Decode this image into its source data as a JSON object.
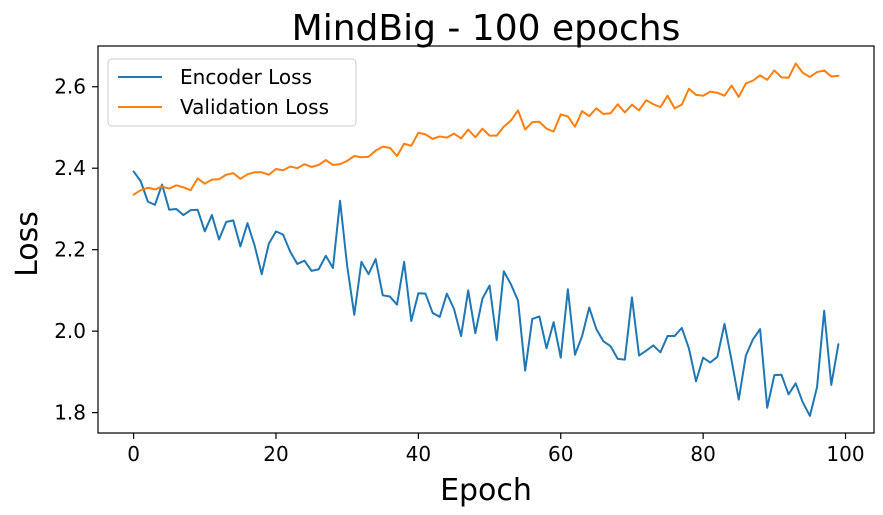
{
  "chart_data": {
    "type": "line",
    "title": "MindBig - 100 epochs",
    "xlabel": "Epoch",
    "ylabel": "Loss",
    "xlim": [
      -5,
      104
    ],
    "ylim": [
      1.75,
      2.7
    ],
    "xticks": [
      0,
      20,
      40,
      60,
      80,
      100
    ],
    "yticks": [
      1.8,
      2.0,
      2.2,
      2.4,
      2.6
    ],
    "ytick_labels": [
      "1.8",
      "2.0",
      "2.2",
      "2.4",
      "2.6"
    ],
    "grid": false,
    "legend": "upper-left",
    "series": [
      {
        "name": "Encoder Loss",
        "color": "#1f77b4",
        "x": [
          0,
          1,
          2,
          3,
          4,
          5,
          6,
          7,
          8,
          9,
          10,
          11,
          12,
          13,
          14,
          15,
          16,
          17,
          18,
          19,
          20,
          21,
          22,
          23,
          24,
          25,
          26,
          27,
          28,
          29,
          30,
          31,
          32,
          33,
          34,
          35,
          36,
          37,
          38,
          39,
          40,
          41,
          42,
          43,
          44,
          45,
          46,
          47,
          48,
          49,
          50,
          51,
          52,
          53,
          54,
          55,
          56,
          57,
          58,
          59,
          60,
          61,
          62,
          63,
          64,
          65,
          66,
          67,
          68,
          69,
          70,
          71,
          72,
          73,
          74,
          75,
          76,
          77,
          78,
          79,
          80,
          81,
          82,
          83,
          84,
          85,
          86,
          87,
          88,
          89,
          90,
          91,
          92,
          93,
          94,
          95,
          96,
          97,
          98,
          99
        ],
        "values": [
          2.392,
          2.368,
          2.318,
          2.31,
          2.36,
          2.298,
          2.3,
          2.285,
          2.297,
          2.298,
          2.245,
          2.285,
          2.225,
          2.268,
          2.272,
          2.208,
          2.265,
          2.21,
          2.14,
          2.215,
          2.245,
          2.237,
          2.195,
          2.165,
          2.173,
          2.148,
          2.152,
          2.185,
          2.155,
          2.32,
          2.16,
          2.04,
          2.17,
          2.14,
          2.177,
          2.088,
          2.085,
          2.065,
          2.17,
          2.025,
          2.093,
          2.092,
          2.045,
          2.035,
          2.092,
          2.055,
          1.988,
          2.1,
          1.995,
          2.08,
          2.112,
          1.978,
          2.147,
          2.115,
          2.075,
          1.903,
          2.03,
          2.036,
          1.958,
          2.022,
          1.935,
          2.103,
          1.942,
          1.988,
          2.058,
          2.005,
          1.975,
          1.963,
          1.932,
          1.93,
          2.083,
          1.94,
          1.952,
          1.965,
          1.948,
          1.988,
          1.988,
          2.008,
          1.958,
          1.877,
          1.935,
          1.923,
          1.937,
          2.018,
          1.928,
          1.832,
          1.94,
          1.98,
          2.005,
          1.812,
          1.892,
          1.893,
          1.845,
          1.872,
          1.825,
          1.792,
          1.863,
          2.05,
          1.868,
          1.968
        ]
      },
      {
        "name": "Validation Loss",
        "color": "#ff7f0e",
        "x": [
          0,
          1,
          2,
          3,
          4,
          5,
          6,
          7,
          8,
          9,
          10,
          11,
          12,
          13,
          14,
          15,
          16,
          17,
          18,
          19,
          20,
          21,
          22,
          23,
          24,
          25,
          26,
          27,
          28,
          29,
          30,
          31,
          32,
          33,
          34,
          35,
          36,
          37,
          38,
          39,
          40,
          41,
          42,
          43,
          44,
          45,
          46,
          47,
          48,
          49,
          50,
          51,
          52,
          53,
          54,
          55,
          56,
          57,
          58,
          59,
          60,
          61,
          62,
          63,
          64,
          65,
          66,
          67,
          68,
          69,
          70,
          71,
          72,
          73,
          74,
          75,
          76,
          77,
          78,
          79,
          80,
          81,
          82,
          83,
          84,
          85,
          86,
          87,
          88,
          89,
          90,
          91,
          92,
          93,
          94,
          95,
          96,
          97,
          98,
          99
        ],
        "values": [
          2.335,
          2.346,
          2.352,
          2.348,
          2.355,
          2.35,
          2.358,
          2.353,
          2.346,
          2.375,
          2.362,
          2.372,
          2.373,
          2.384,
          2.388,
          2.374,
          2.385,
          2.39,
          2.39,
          2.384,
          2.398,
          2.395,
          2.404,
          2.4,
          2.41,
          2.403,
          2.408,
          2.42,
          2.408,
          2.41,
          2.418,
          2.43,
          2.427,
          2.428,
          2.443,
          2.453,
          2.45,
          2.43,
          2.46,
          2.455,
          2.487,
          2.483,
          2.472,
          2.478,
          2.475,
          2.485,
          2.473,
          2.495,
          2.476,
          2.497,
          2.48,
          2.48,
          2.502,
          2.517,
          2.542,
          2.495,
          2.513,
          2.514,
          2.497,
          2.49,
          2.532,
          2.527,
          2.502,
          2.54,
          2.528,
          2.547,
          2.533,
          2.535,
          2.557,
          2.537,
          2.556,
          2.542,
          2.567,
          2.557,
          2.55,
          2.578,
          2.547,
          2.556,
          2.595,
          2.58,
          2.578,
          2.588,
          2.585,
          2.578,
          2.603,
          2.575,
          2.608,
          2.615,
          2.628,
          2.617,
          2.64,
          2.623,
          2.622,
          2.657,
          2.634,
          2.624,
          2.636,
          2.64,
          2.625,
          2.627
        ]
      }
    ]
  }
}
